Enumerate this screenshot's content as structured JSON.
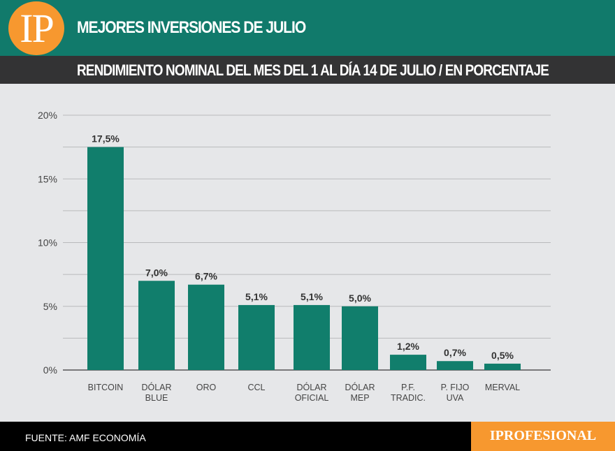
{
  "header": {
    "logo": "IP",
    "title": "MEJORES INVERSIONES DE JULIO",
    "subtitle": "RENDIMIENTO NOMINAL DEL MES DEL 1 AL DÍA 14 DE JULIO / EN PORCENTAJE"
  },
  "footer": {
    "source": "FUENTE: AMF ECONOMÍA",
    "brand": "IPROFESIONAL"
  },
  "colors": {
    "bar": "#117e6c",
    "header": "#117a6b",
    "accent": "#f7982f"
  },
  "chart_data": {
    "type": "bar",
    "title": "",
    "xlabel": "",
    "ylabel": "",
    "ylim": [
      0,
      20
    ],
    "grid": true,
    "yticks": [
      "0%",
      "5%",
      "10%",
      "15%",
      "20%"
    ],
    "categories": [
      [
        "BITCOIN"
      ],
      [
        "DÓLAR",
        "BLUE"
      ],
      [
        "ORO"
      ],
      [
        "CCL"
      ],
      [
        "DÓLAR",
        "OFICIAL"
      ],
      [
        "DÓLAR",
        "MEP"
      ],
      [
        "P.F.",
        "TRADIC."
      ],
      [
        "P. FIJO",
        "UVA"
      ],
      [
        "MERVAL"
      ]
    ],
    "values": [
      17.5,
      7.0,
      6.7,
      5.1,
      5.1,
      5.0,
      1.2,
      0.7,
      0.5
    ],
    "labels": [
      "17,5%",
      "7,0%",
      "6,7%",
      "5,1%",
      "5,1%",
      "5,0%",
      "1,2%",
      "0,7%",
      "0,5%"
    ]
  }
}
